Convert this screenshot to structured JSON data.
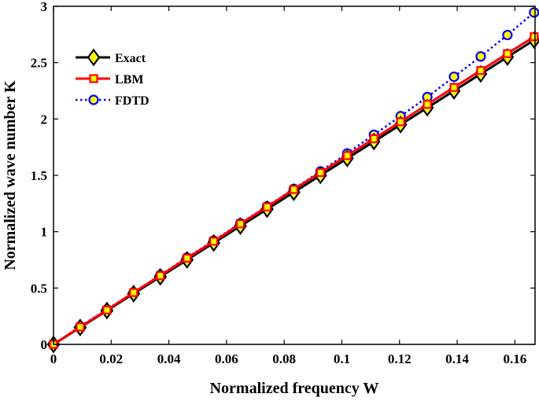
{
  "chart_data": {
    "type": "line",
    "xlabel": "Normalized frequency W",
    "ylabel": "Normalized wave number K",
    "xlim": [
      0,
      0.167
    ],
    "ylim": [
      0,
      3
    ],
    "xticks": [
      "0",
      "0.02",
      "0.04",
      "0.06",
      "0.08",
      "0.1",
      "0.12",
      "0.14",
      "0.16"
    ],
    "yticks": [
      "0",
      "0.5",
      "1",
      "1.5",
      "2",
      "2.5",
      "3"
    ],
    "grid": false,
    "legend_position": "top-left",
    "x": [
      0,
      0.00926,
      0.01852,
      0.02778,
      0.03704,
      0.0463,
      0.05556,
      0.06481,
      0.07407,
      0.08333,
      0.09259,
      0.10185,
      0.11111,
      0.12037,
      0.12963,
      0.13889,
      0.14815,
      0.15741,
      0.16667
    ],
    "series": [
      {
        "name": "Exact",
        "color": "#000000",
        "marker_fill": "#ffff00",
        "marker": "diamond",
        "line_style": "solid",
        "values": [
          0,
          0.15,
          0.3,
          0.45,
          0.6,
          0.75,
          0.9,
          1.05,
          1.2,
          1.35,
          1.5,
          1.65,
          1.8,
          1.95,
          2.1,
          2.25,
          2.4,
          2.55,
          2.7
        ]
      },
      {
        "name": "LBM",
        "color": "#ff0000",
        "marker_fill": "#ffff00",
        "marker": "square",
        "line_style": "solid",
        "values": [
          0,
          0.155,
          0.305,
          0.46,
          0.61,
          0.765,
          0.915,
          1.07,
          1.22,
          1.375,
          1.525,
          1.675,
          1.825,
          1.975,
          2.13,
          2.28,
          2.43,
          2.58,
          2.73
        ]
      },
      {
        "name": "FDTD",
        "color": "#0000ff",
        "marker_fill": "#ffff00",
        "marker": "circle",
        "line_style": "dotted",
        "values": [
          0,
          0.16,
          0.31,
          0.46,
          0.615,
          0.77,
          0.92,
          1.075,
          1.225,
          1.38,
          1.535,
          1.695,
          1.86,
          2.025,
          2.195,
          2.375,
          2.555,
          2.745,
          2.945
        ]
      }
    ]
  }
}
